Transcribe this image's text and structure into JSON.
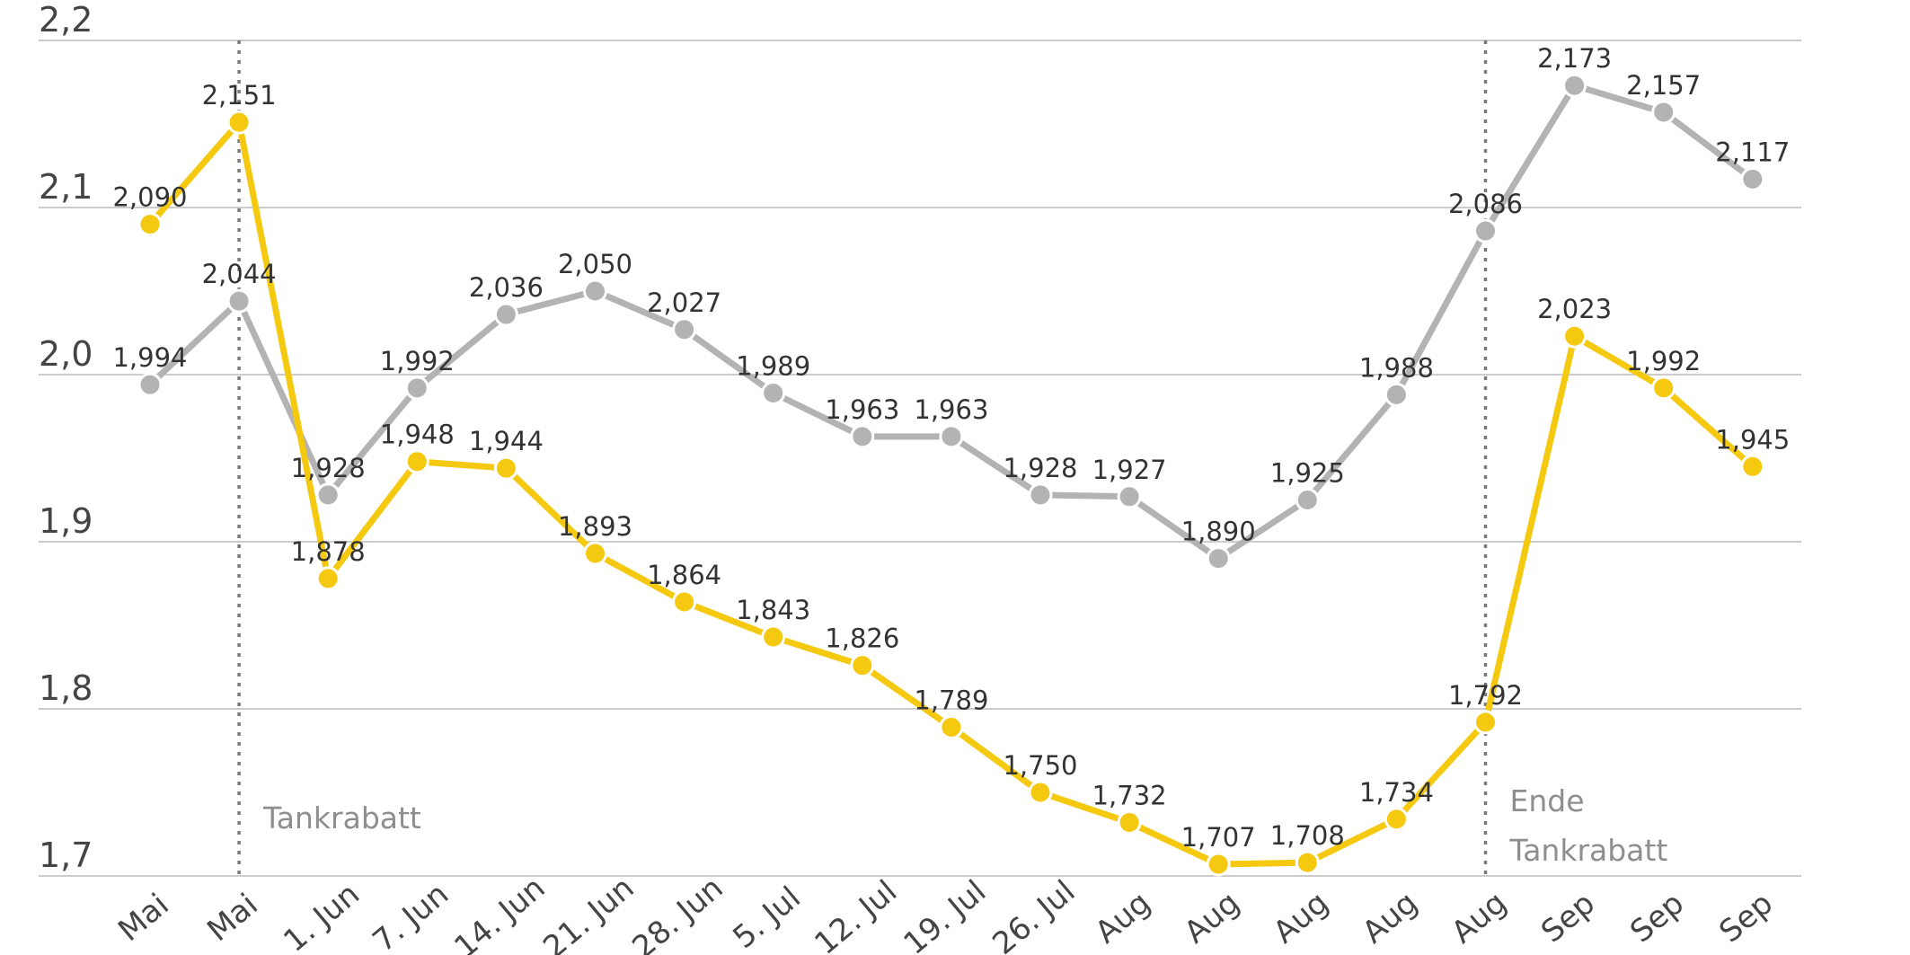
{
  "chart_data": {
    "type": "line",
    "title": "",
    "xlabel": "",
    "ylabel": "",
    "ylim": [
      1.7,
      2.2
    ],
    "yticks": [
      "1,7",
      "1,8",
      "1,9",
      "2,0",
      "2,1",
      "2,2"
    ],
    "grid": true,
    "categories": [
      "Mai",
      "Mai",
      "Jun",
      "Jun",
      "Jun",
      "Jun",
      "Jun",
      "Jul",
      "Jul",
      "Jul",
      "Jul",
      "Aug",
      "Aug",
      "Aug",
      "Aug",
      "Aug",
      "Sep",
      "Sep",
      "Sep"
    ],
    "tick_labels": [
      "Mai",
      "Mai",
      "1. Jun",
      "7. Jun",
      "14. Jun",
      "21. Jun",
      "28. Jun",
      "5. Jul",
      "12. Jul",
      "19. Jul",
      "26. Jul",
      "Aug",
      "Aug",
      "Aug",
      "Aug",
      "Aug",
      "Sep",
      "Sep",
      "Sep"
    ],
    "series": [
      {
        "name": "gray",
        "color": "#b3b3b3",
        "values": [
          1.994,
          2.044,
          1.928,
          1.992,
          2.036,
          2.05,
          2.027,
          1.989,
          1.963,
          1.963,
          1.928,
          1.927,
          1.89,
          1.925,
          1.988,
          2.086,
          2.173,
          2.157,
          2.117
        ],
        "labels": [
          "1,994",
          "2,044",
          "1,928",
          "1,992",
          "2,036",
          "2,050",
          "2,027",
          "1,989",
          "1,963",
          "1,963",
          "1,928",
          "1,927",
          "1,890",
          "1,925",
          "1,988",
          "2,086",
          "2,173",
          "2,157",
          "2,117"
        ]
      },
      {
        "name": "yellow",
        "color": "#f5c90f",
        "values": [
          2.09,
          2.151,
          1.878,
          1.948,
          1.944,
          1.893,
          1.864,
          1.843,
          1.826,
          1.789,
          1.75,
          1.732,
          1.707,
          1.708,
          1.734,
          1.792,
          2.023,
          1.992,
          1.945
        ],
        "labels": [
          "2,090",
          "2,151",
          "1,878",
          "1,948",
          "1,944",
          "1,893",
          "1,864",
          "1,843",
          "1,826",
          "1,789",
          "1,750",
          "1,732",
          "1,707",
          "1,708",
          "1,734",
          "1,792",
          "2,023",
          "1,992",
          "1,945"
        ]
      }
    ],
    "annotations": [
      {
        "at_index": 1,
        "lines": [
          "Tankrabatt"
        ]
      },
      {
        "at_index": 15,
        "lines": [
          "Ende",
          "Tankrabatt"
        ]
      }
    ]
  }
}
